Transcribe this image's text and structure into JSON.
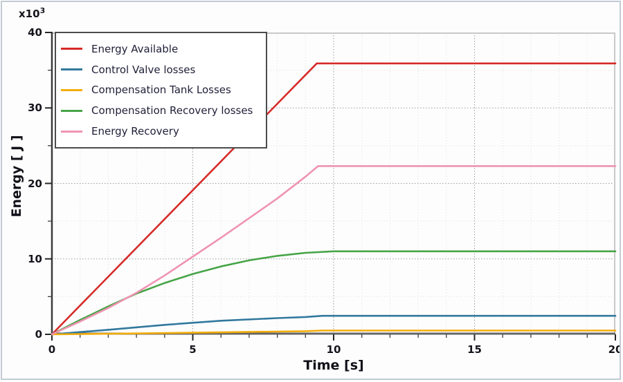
{
  "chart_data": {
    "type": "line",
    "title": "",
    "xlabel": "Time [s]",
    "ylabel": "Energy [ J ]",
    "y_multiplier": "x10",
    "y_multiplier_exponent": "3",
    "xlim": [
      0,
      20
    ],
    "ylim": [
      0,
      40
    ],
    "x_ticks": [
      0,
      5,
      10,
      15,
      20
    ],
    "x_tick_labels": [
      "0",
      "5",
      "10",
      "15",
      "20"
    ],
    "x_minor_tick_step": 1,
    "y_ticks": [
      0,
      10,
      20,
      30,
      40
    ],
    "y_tick_labels": [
      "0",
      "10",
      "20",
      "30",
      "40"
    ],
    "y_minor_tick_step": 5,
    "grid": {
      "major": "dotted",
      "minor": "faint-dotted"
    },
    "legend_position": "top-left",
    "series": [
      {
        "name": "Energy Available",
        "color": "#d62a28",
        "points": [
          [
            0,
            0
          ],
          [
            9.4,
            35.9
          ],
          [
            20,
            35.9
          ]
        ]
      },
      {
        "name": "Control Valve losses",
        "color": "#31789e",
        "points": [
          [
            0,
            0
          ],
          [
            2,
            0.6
          ],
          [
            4,
            1.25
          ],
          [
            6,
            1.8
          ],
          [
            8,
            2.15
          ],
          [
            9,
            2.3
          ],
          [
            9.6,
            2.45
          ],
          [
            20,
            2.45
          ]
        ]
      },
      {
        "name": "Compensation Tank Losses",
        "color": "#f2ad0c",
        "points": [
          [
            0,
            0
          ],
          [
            3,
            0.12
          ],
          [
            6,
            0.27
          ],
          [
            9,
            0.42
          ],
          [
            9.6,
            0.5
          ],
          [
            20,
            0.5
          ]
        ]
      },
      {
        "name": "Compensation Recovery losses",
        "color": "#46a447",
        "points": [
          [
            0,
            0
          ],
          [
            1,
            1.9
          ],
          [
            2,
            3.7
          ],
          [
            3,
            5.4
          ],
          [
            4,
            6.8
          ],
          [
            5,
            8.0
          ],
          [
            6,
            9.0
          ],
          [
            7,
            9.8
          ],
          [
            8,
            10.4
          ],
          [
            9,
            10.8
          ],
          [
            10,
            11.0
          ],
          [
            20,
            11.0
          ]
        ]
      },
      {
        "name": "Energy Recovery",
        "color": "#ef93b1",
        "points": [
          [
            0,
            0
          ],
          [
            1,
            1.7
          ],
          [
            2,
            3.5
          ],
          [
            3,
            5.5
          ],
          [
            4,
            7.8
          ],
          [
            5,
            10.3
          ],
          [
            6,
            12.8
          ],
          [
            7,
            15.4
          ],
          [
            8,
            18.0
          ],
          [
            9,
            20.9
          ],
          [
            9.45,
            22.3
          ],
          [
            20,
            22.3
          ]
        ]
      }
    ]
  }
}
